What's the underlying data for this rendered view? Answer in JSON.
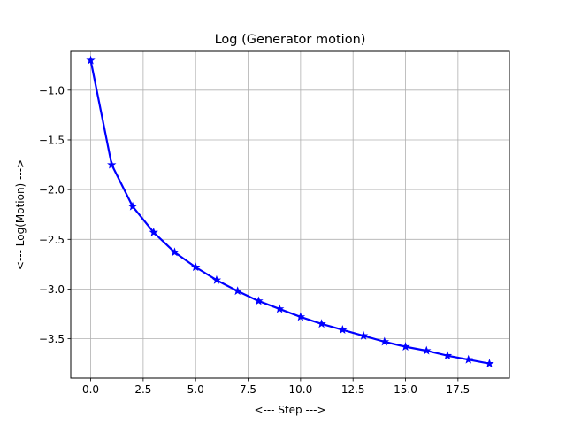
{
  "chart_data": {
    "type": "line",
    "title": "Log (Generator motion)",
    "xlabel": "<--- Step --->",
    "ylabel": "<--- Log(Motion) --->",
    "xlim": [
      -0.95,
      19.95
    ],
    "ylim": [
      -3.895,
      -0.61
    ],
    "xticks": [
      0,
      2.5,
      5,
      7.5,
      10,
      12.5,
      15,
      17.5
    ],
    "xtick_labels": [
      "0.0",
      "2.5",
      "5.0",
      "7.5",
      "10.0",
      "12.5",
      "15.0",
      "17.5"
    ],
    "yticks": [
      -1.0,
      -1.5,
      -2.0,
      -2.5,
      -3.0,
      -3.5
    ],
    "ytick_labels": [
      "−1.0",
      "−1.5",
      "−2.0",
      "−2.5",
      "−3.0",
      "−3.5"
    ],
    "grid": true,
    "line_color": "#0000ff",
    "marker": "star",
    "series": [
      {
        "x": [
          0,
          1,
          2,
          3,
          4,
          5,
          6,
          7,
          8,
          9,
          10,
          11,
          12,
          13,
          14,
          15,
          16,
          17,
          18,
          19
        ],
        "values": [
          -0.7,
          -1.75,
          -2.17,
          -2.43,
          -2.63,
          -2.78,
          -2.91,
          -3.02,
          -3.12,
          -3.2,
          -3.28,
          -3.35,
          -3.41,
          -3.47,
          -3.53,
          -3.58,
          -3.62,
          -3.67,
          -3.71,
          -3.75
        ]
      }
    ]
  }
}
